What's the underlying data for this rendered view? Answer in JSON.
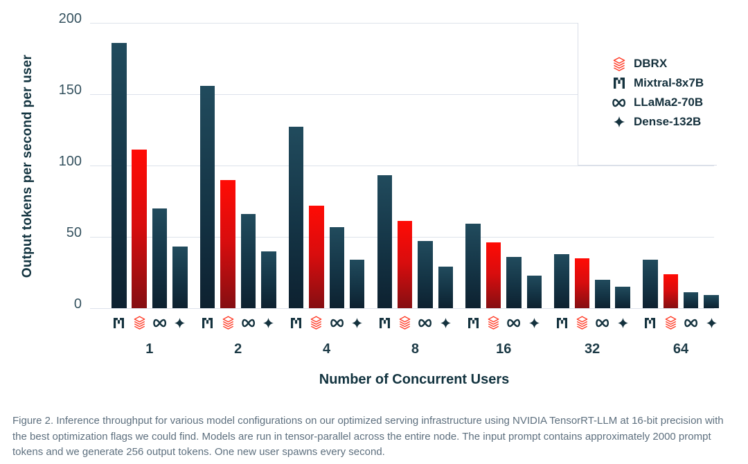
{
  "chart_data": {
    "type": "bar",
    "xlabel": "Number of Concurrent Users",
    "ylabel": "Output tokens per second per user",
    "categories": [
      "1",
      "2",
      "4",
      "8",
      "16",
      "32",
      "64"
    ],
    "y_ticks": [
      0,
      50,
      100,
      150,
      200
    ],
    "ylim": [
      0,
      200
    ],
    "grid": true,
    "legend_position": "top-right-overlay-box",
    "series": [
      {
        "name": "Mixtral-8x7B",
        "icon": "mistral-m-icon",
        "style": "dark",
        "values": [
          186,
          156,
          127,
          93,
          59,
          38,
          34
        ]
      },
      {
        "name": "DBRX",
        "icon": "databricks-stack-icon",
        "style": "red",
        "values": [
          111,
          90,
          72,
          61,
          46,
          35,
          24
        ]
      },
      {
        "name": "LLaMa2-70B",
        "icon": "meta-infinity-icon",
        "style": "dark",
        "values": [
          70,
          66,
          57,
          47,
          36,
          20,
          11
        ]
      },
      {
        "name": "Dense-132B",
        "icon": "sparkle-icon",
        "style": "dark",
        "values": [
          43,
          40,
          34,
          29,
          23,
          15,
          9
        ]
      }
    ],
    "legend": [
      {
        "label": "DBRX",
        "icon": "databricks-stack-icon"
      },
      {
        "label": "Mixtral-8x7B",
        "icon": "mistral-m-icon"
      },
      {
        "label": "LLaMa2-70B",
        "icon": "meta-infinity-icon"
      },
      {
        "label": "Dense-132B",
        "icon": "sparkle-icon"
      }
    ]
  },
  "caption": "Figure 2. Inference throughput for various model configurations on our optimized serving infrastructure using NVIDIA TensorRT-LLM at 16-bit precision with the best optimization flags we could find. Models are run in tensor-parallel across the entire node. The input prompt contains approximately 2000 prompt tokens and we generate 256 output tokens. One new user spawns every second.",
  "colors": {
    "bar_dark_top": "#214b5d",
    "bar_dark_bottom": "#0d2130",
    "bar_red_top": "#ff0b05",
    "bar_red_bottom": "#850e12",
    "gridline": "#dde2eb",
    "tick_text": "#35525f",
    "axis_title_text": "#12333f",
    "category_text": "#1c3a46",
    "legend_text": "#14303c",
    "caption_text": "#5d6f7e",
    "icon_dark": "#14323e",
    "icon_red": "#ff3621",
    "background": "#ffffff"
  }
}
